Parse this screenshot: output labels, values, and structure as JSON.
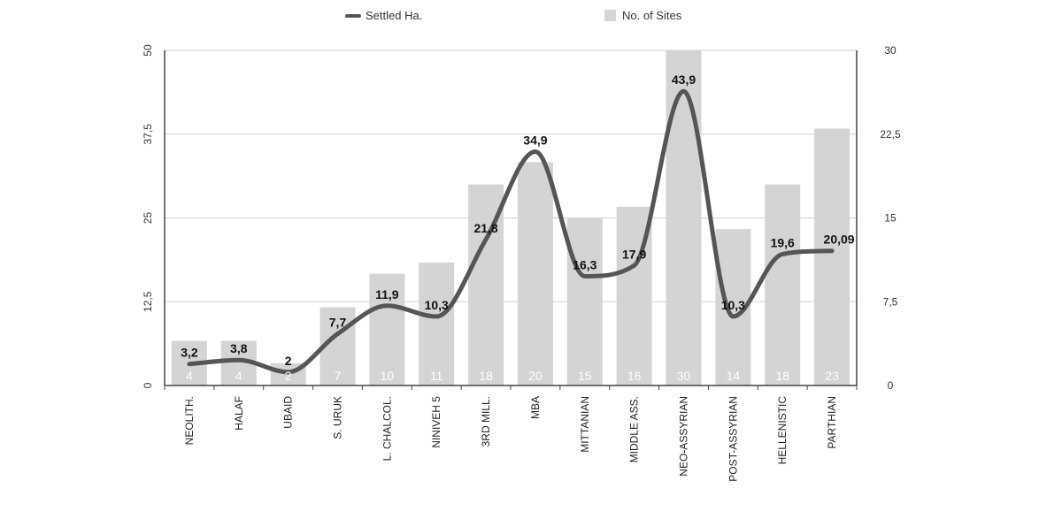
{
  "chart_data": {
    "type": "bar",
    "categories": [
      "NEOLITH.",
      "HALAF",
      "UBAID",
      "S. URUK",
      "L. CHALCOL.",
      "NINIVEH 5",
      "3RD MILL.",
      "MBA",
      "MITTANIAN",
      "MIDDLE ASS.",
      "NEO-ASSYRIAN",
      "POST-ASSYRIAN",
      "HELLENISTIC",
      "PARTHIAN"
    ],
    "series": [
      {
        "name": "No. of Sites",
        "type": "bar",
        "axis": "right",
        "values": [
          4,
          4,
          2,
          7,
          10,
          11,
          18,
          20,
          15,
          16,
          30,
          14,
          18,
          23
        ],
        "labels": [
          "4",
          "4",
          "2",
          "7",
          "10",
          "11",
          "18",
          "20",
          "15",
          "16",
          "30",
          "14",
          "18",
          "23"
        ],
        "color": "#d4d4d4"
      },
      {
        "name": "Settled Ha.",
        "type": "line",
        "axis": "left",
        "values": [
          3.2,
          3.8,
          2,
          7.7,
          11.9,
          10.3,
          21.8,
          34.9,
          16.3,
          17.9,
          43.9,
          10.3,
          19.6,
          20.09
        ],
        "labels": [
          "3,2",
          "3,8",
          "2",
          "7,7",
          "11,9",
          "10,3",
          "21,8",
          "34,9",
          "16,3",
          "17,9",
          "43,9",
          "10,3",
          "19,6",
          "20,09"
        ],
        "color": "#555555"
      }
    ],
    "y_left": {
      "lim": [
        0,
        50
      ],
      "ticks": [
        "0",
        "12,5",
        "25",
        "37,5",
        "50"
      ]
    },
    "y_right": {
      "lim": [
        0,
        30
      ],
      "ticks": [
        "0",
        "7,5",
        "15",
        "22,5",
        "30"
      ]
    },
    "grid": true,
    "legend": "top"
  }
}
